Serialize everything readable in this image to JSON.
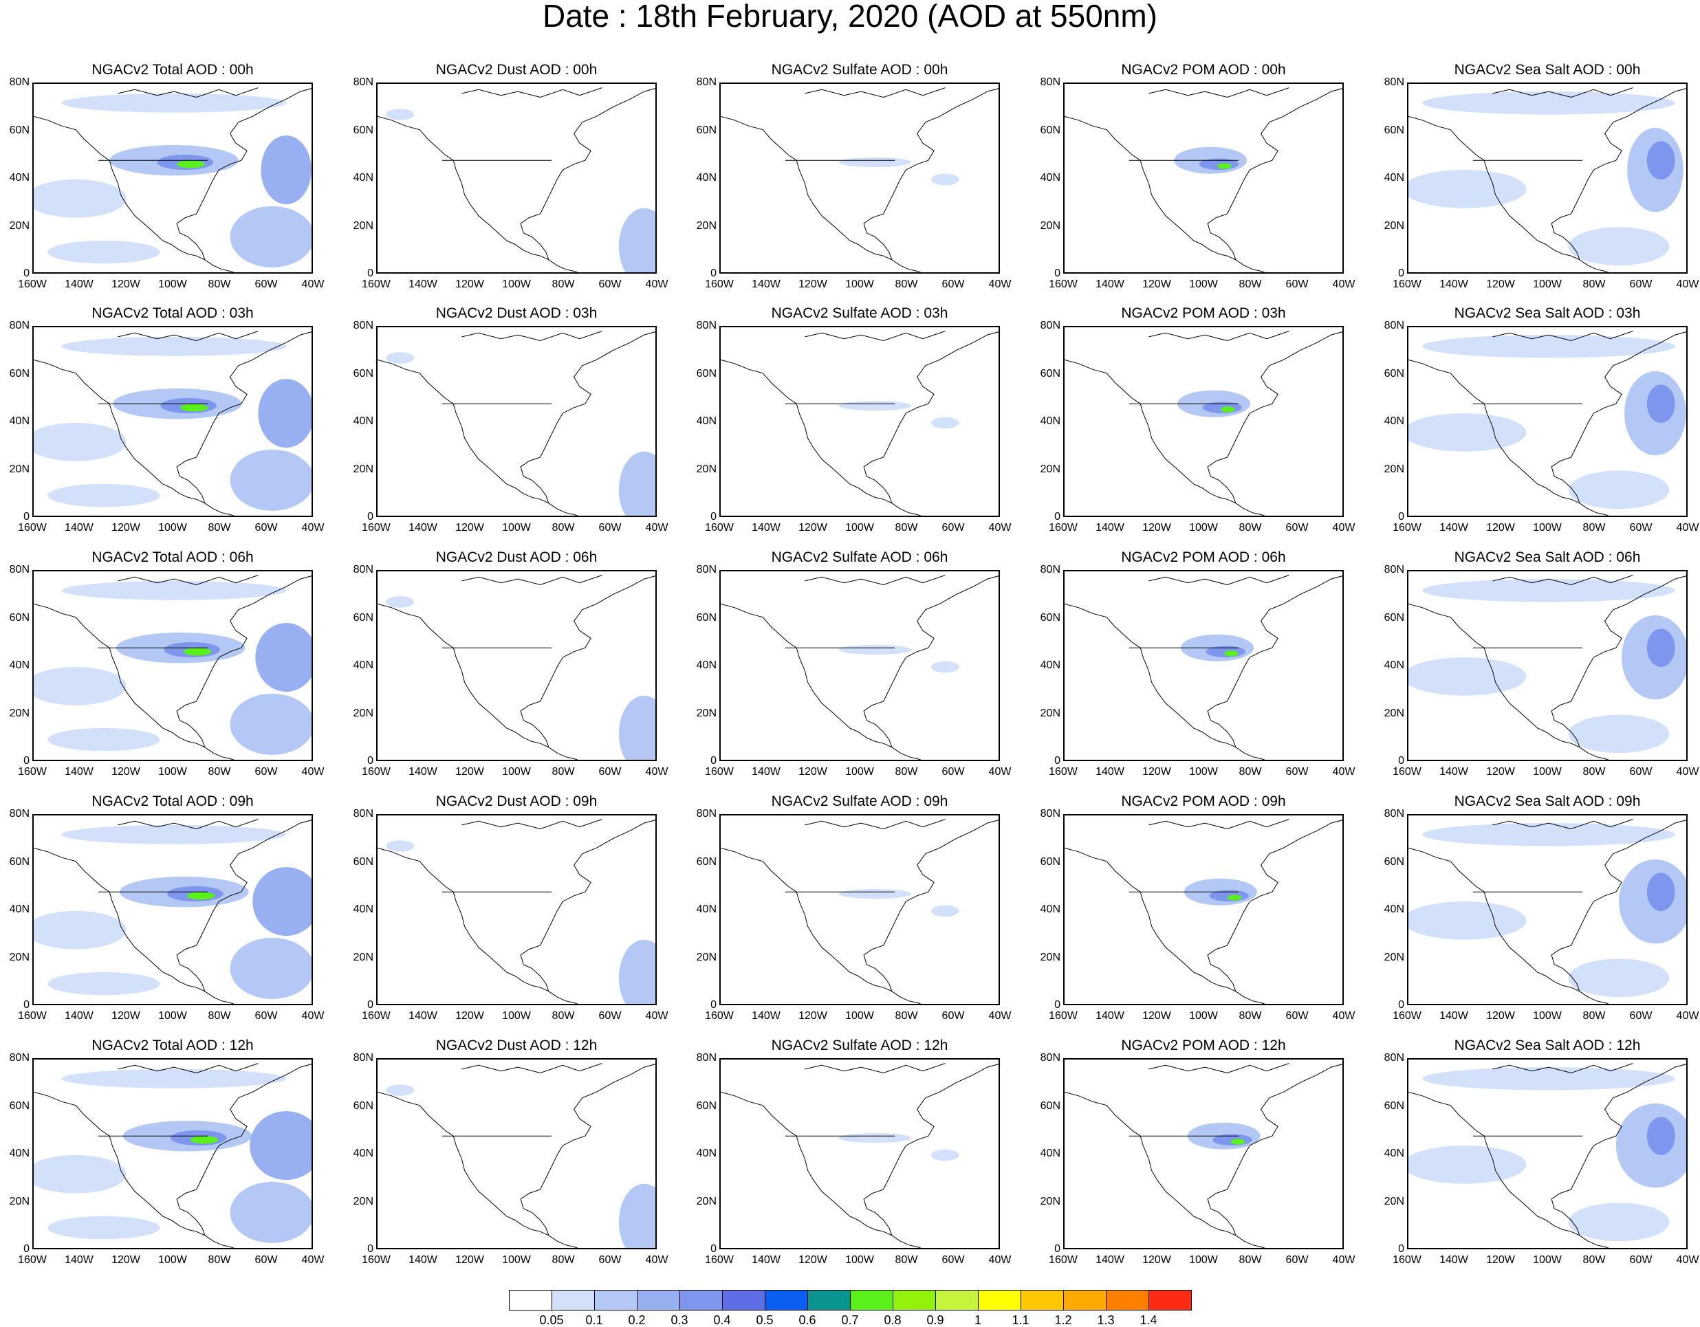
{
  "title": "Date : 18th February, 2020 (AOD at 550nm)",
  "rows": [
    [
      "NGACv2 Total AOD : 00h",
      "NGACv2 Dust AOD : 00h",
      "NGACv2 Sulfate AOD : 00h",
      "NGACv2 POM AOD : 00h",
      "NGACv2 Sea Salt AOD : 00h"
    ],
    [
      "NGACv2 Total AOD : 03h",
      "NGACv2 Dust AOD : 03h",
      "NGACv2 Sulfate AOD : 03h",
      "NGACv2 POM AOD : 03h",
      "NGACv2 Sea Salt AOD : 03h"
    ],
    [
      "NGACv2 Total AOD : 06h",
      "NGACv2 Dust AOD : 06h",
      "NGACv2 Sulfate AOD : 06h",
      "NGACv2 POM AOD : 06h",
      "NGACv2 Sea Salt AOD : 06h"
    ],
    [
      "NGACv2 Total AOD : 09h",
      "NGACv2 Dust AOD : 09h",
      "NGACv2 Sulfate AOD : 09h",
      "NGACv2 POM AOD : 09h",
      "NGACv2 Sea Salt  AOD : 09h"
    ],
    [
      "NGACv2 Total AOD  : 12h",
      "NGACv2 Dust AOD : 12h",
      "NGACv2 Sulfate AOD : 12h",
      "NGACv2 POM  AOD : 12h",
      "NGACv2 Sea Salt  AOD : 12h"
    ]
  ],
  "lat_ticks": [
    "80N",
    "60N",
    "40N",
    "20N",
    "0"
  ],
  "lon_ticks": [
    "160W",
    "140W",
    "120W",
    "100W",
    "80W",
    "60W",
    "40W"
  ],
  "colorbar": {
    "labels": [
      "0.05",
      "0.1",
      "0.2",
      "0.3",
      "0.4",
      "0.5",
      "0.6",
      "0.7",
      "0.8",
      "0.9",
      "1",
      "1.1",
      "1.2",
      "1.3",
      "1.4"
    ],
    "colors": [
      "#ffffff",
      "#d2e0fa",
      "#b4c8f5",
      "#98b0f2",
      "#7f96ee",
      "#5f6ee6",
      "#0a5ef2",
      "#09948f",
      "#5af01c",
      "#92f20c",
      "#c6f43c",
      "#ffff00",
      "#ffc800",
      "#ffaa00",
      "#ff7f00",
      "#ff2a14"
    ]
  }
}
